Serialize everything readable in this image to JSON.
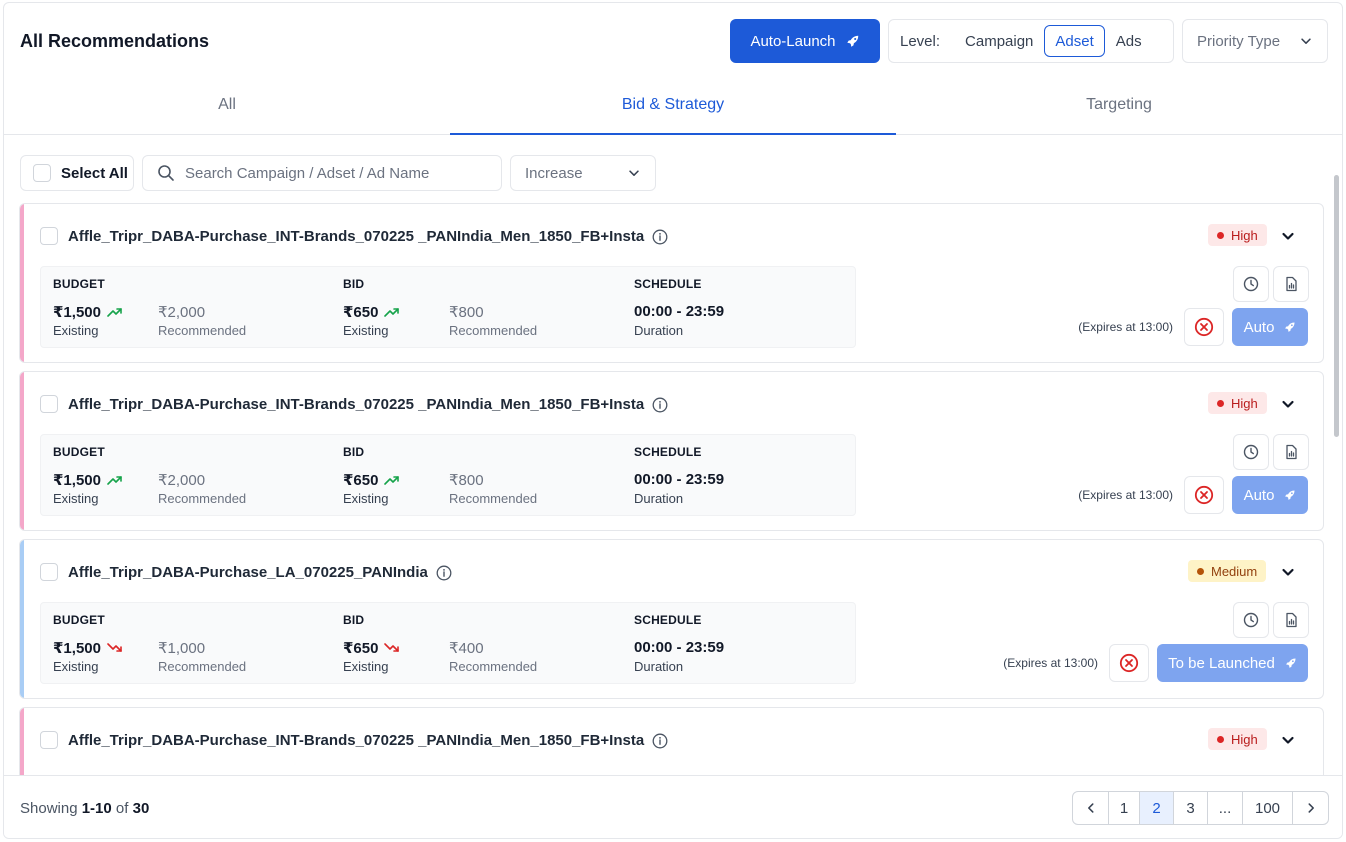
{
  "header": {
    "title": "All Recommendations",
    "auto_launch_label": "Auto-Launch",
    "level_label": "Level:",
    "levels": [
      "Campaign",
      "Adset",
      "Ads"
    ],
    "active_level": "Adset",
    "priority_placeholder": "Priority Type"
  },
  "tabs": [
    {
      "label": "All",
      "active": false
    },
    {
      "label": "Bid & Strategy",
      "active": true
    },
    {
      "label": "Targeting",
      "active": false
    }
  ],
  "filters": {
    "select_all_label": "Select All",
    "search_placeholder": "Search Campaign / Adset / Ad Name",
    "direction_value": "Increase"
  },
  "labels": {
    "budget": "BUDGET",
    "bid": "BID",
    "schedule": "SCHEDULE",
    "existing": "Existing",
    "recommended": "Recommended",
    "duration": "Duration"
  },
  "colors": {
    "accent": "#1d5ad8",
    "high_stripe": "#f4a7c9",
    "medium_stripe": "#a9cdf5",
    "trend_up": "#16a34a",
    "trend_down": "#dc2626"
  },
  "cards": [
    {
      "name": "Affle_Tripr_DABA-Purchase_INT-Brands_070225 _PANIndia_Men_1850_FB+Insta",
      "priority": "High",
      "budget_existing": "₹1,500",
      "budget_recommended": "₹2,000",
      "bid_existing": "₹650",
      "bid_recommended": "₹800",
      "trend": "up",
      "schedule": "00:00 - 23:59",
      "expires": "(Expires at 13:00)",
      "action_label": "Auto"
    },
    {
      "name": "Affle_Tripr_DABA-Purchase_INT-Brands_070225 _PANIndia_Men_1850_FB+Insta",
      "priority": "High",
      "budget_existing": "₹1,500",
      "budget_recommended": "₹2,000",
      "bid_existing": "₹650",
      "bid_recommended": "₹800",
      "trend": "up",
      "schedule": "00:00 - 23:59",
      "expires": "(Expires at 13:00)",
      "action_label": "Auto"
    },
    {
      "name": "Affle_Tripr_DABA-Purchase_LA_070225_PANIndia",
      "priority": "Medium",
      "budget_existing": "₹1,500",
      "budget_recommended": "₹1,000",
      "bid_existing": "₹650",
      "bid_recommended": "₹400",
      "trend": "down",
      "schedule": "00:00 - 23:59",
      "expires": "(Expires at 13:00)",
      "action_label": "To be Launched"
    },
    {
      "name": "Affle_Tripr_DABA-Purchase_INT-Brands_070225 _PANIndia_Men_1850_FB+Insta",
      "priority": "High"
    }
  ],
  "footer": {
    "showing_prefix": "Showing",
    "showing_range": "1-10",
    "showing_of": "of",
    "showing_total": "30",
    "pages": [
      "1",
      "2",
      "3",
      "...",
      "100"
    ],
    "active_page": "2"
  }
}
